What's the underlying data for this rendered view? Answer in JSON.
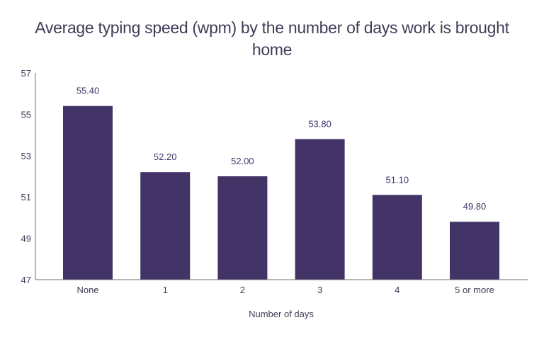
{
  "chart_data": {
    "type": "bar",
    "title": "Average typing speed (wpm) by the number of days work is brought home",
    "xlabel": "Number of days",
    "ylabel": "",
    "categories": [
      "None",
      "1",
      "2",
      "3",
      "4",
      "5 or more"
    ],
    "values": [
      55.4,
      52.2,
      52.0,
      53.8,
      51.1,
      49.8
    ],
    "value_labels": [
      "55.40",
      "52.20",
      "52.00",
      "53.80",
      "51.10",
      "49.80"
    ],
    "ylim": [
      47,
      57
    ],
    "yticks": [
      47,
      49,
      51,
      53,
      55,
      57
    ],
    "grid": false,
    "legend": null,
    "bar_color": "#433468"
  }
}
